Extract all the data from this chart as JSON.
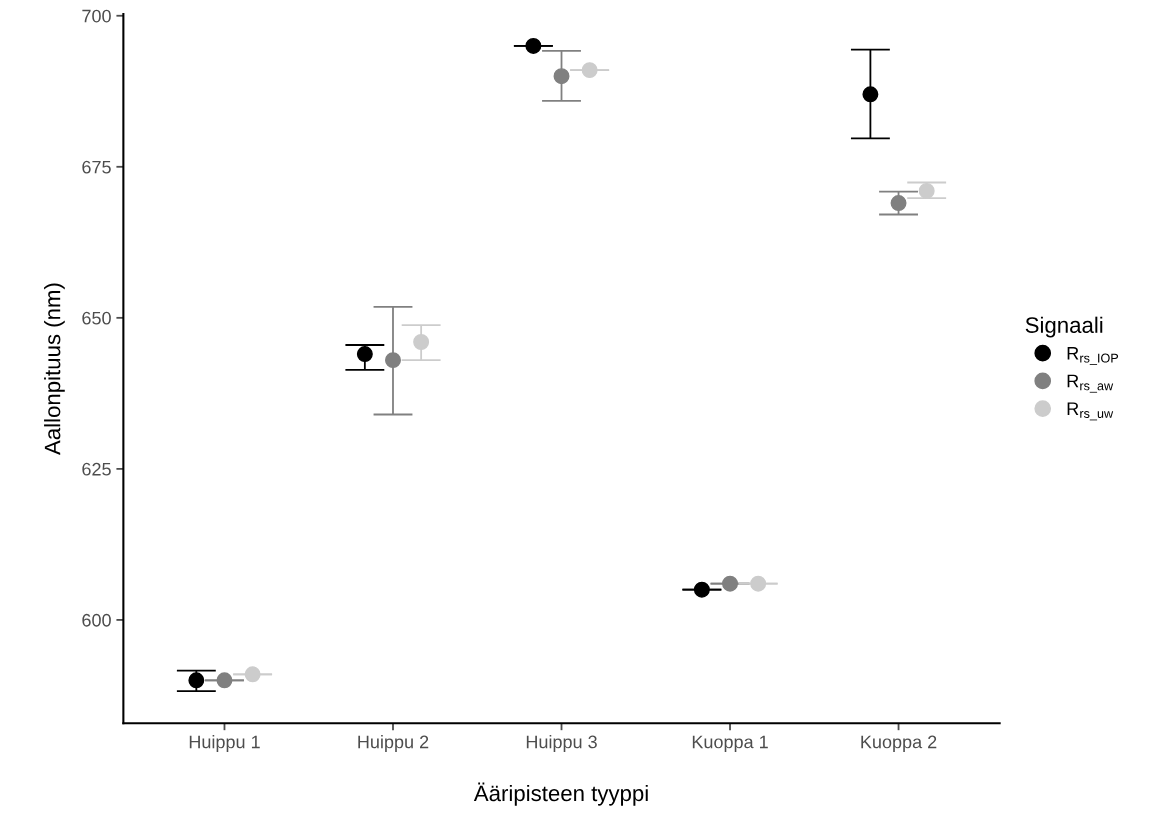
{
  "chart_data": {
    "type": "scatter",
    "xlabel": "Ääripisteen tyyppi",
    "ylabel": "Aallonpituus (nm)",
    "legend_title": "Signaali",
    "categories": [
      "Huippu 1",
      "Huippu 2",
      "Huippu 3",
      "Kuoppa 1",
      "Kuoppa 2"
    ],
    "series": [
      {
        "name": "R$_{rs_IOP}$",
        "color": "#000000",
        "values": [
          590,
          644,
          695,
          605,
          687
        ],
        "errors": [
          [
            588.2,
            591.6
          ],
          [
            641.4,
            645.5
          ],
          [
            695,
            695
          ],
          [
            605,
            605
          ],
          [
            679.7,
            694.4
          ]
        ]
      },
      {
        "name": "R$_{rs_aw}$",
        "color": "#808080",
        "values": [
          590,
          643,
          690,
          606,
          669
        ],
        "errors": [
          [
            590,
            590
          ],
          [
            634,
            651.8
          ],
          [
            685.9,
            694.2
          ],
          [
            606,
            606
          ],
          [
            667.1,
            670.9
          ]
        ]
      },
      {
        "name": "R$_{rs_uw}$",
        "color": "#cccccc",
        "values": [
          591,
          646,
          691,
          606,
          671
        ],
        "errors": [
          [
            591,
            591
          ],
          [
            643,
            648.8
          ],
          [
            691,
            691
          ],
          [
            606,
            606
          ],
          [
            669.8,
            672.4
          ]
        ]
      }
    ],
    "ylim": [
      582.9,
      700.3
    ],
    "yticks": [
      600,
      625,
      650,
      675,
      700
    ],
    "grid": false,
    "legend": "right",
    "marker": "circle"
  }
}
